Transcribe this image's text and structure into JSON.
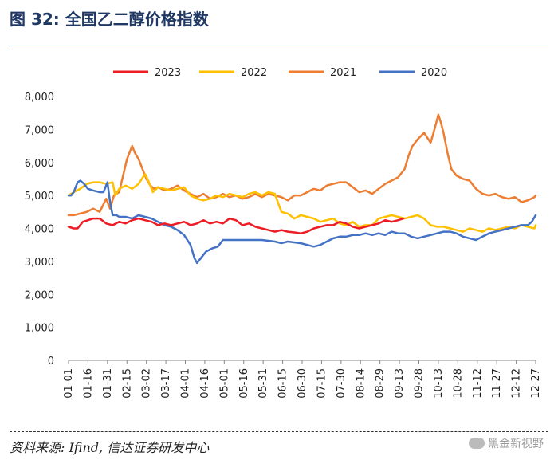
{
  "header": {
    "title": "图 32:  全国乙二醇价格指数"
  },
  "footer": {
    "source": "资料来源: Ifind, 信达证券研发中心",
    "watermark": "黑金新视野"
  },
  "colors": {
    "s2023": "#ee1c25",
    "s2022": "#ffc000",
    "s2021": "#ed7d31",
    "s2020": "#4472c4"
  },
  "chart_data": {
    "type": "line",
    "title": "全国乙二醇价格指数",
    "xlabel": "",
    "ylabel": "",
    "ylim": [
      0,
      8000
    ],
    "yticks": [
      0,
      1000,
      2000,
      3000,
      4000,
      5000,
      6000,
      7000,
      8000
    ],
    "ytick_labels": [
      "0",
      "1,000",
      "2,000",
      "3,000",
      "4,000",
      "5,000",
      "6,000",
      "7,000",
      "8,000"
    ],
    "xlim": [
      1,
      361
    ],
    "xticks": [
      1,
      16,
      31,
      46,
      61,
      76,
      91,
      106,
      121,
      136,
      151,
      166,
      181,
      196,
      211,
      226,
      241,
      256,
      271,
      286,
      301,
      316,
      331,
      346,
      361
    ],
    "xtick_labels": [
      "01-01",
      "01-16",
      "01-31",
      "02-15",
      "03-02",
      "03-17",
      "04-01",
      "04-16",
      "05-01",
      "05-16",
      "05-31",
      "06-15",
      "06-30",
      "07-15",
      "07-30",
      "08-14",
      "08-29",
      "09-13",
      "09-28",
      "10-13",
      "10-28",
      "11-12",
      "11-27",
      "12-12",
      "12-27"
    ],
    "legend": [
      "2023",
      "2022",
      "2021",
      "2020"
    ],
    "series": [
      {
        "name": "2023",
        "x": [
          1,
          5,
          8,
          12,
          16,
          20,
          25,
          30,
          35,
          40,
          45,
          50,
          55,
          60,
          65,
          70,
          75,
          80,
          85,
          90,
          95,
          100,
          105,
          110,
          115,
          120,
          125,
          130,
          135,
          140,
          145,
          150,
          155,
          160,
          165,
          170,
          175,
          180,
          185,
          190,
          195,
          200,
          205,
          210,
          215,
          220,
          225,
          230,
          235,
          240,
          245,
          250,
          255,
          259
        ],
        "values": [
          4050,
          4000,
          4000,
          4200,
          4250,
          4300,
          4300,
          4150,
          4100,
          4200,
          4150,
          4250,
          4300,
          4250,
          4200,
          4100,
          4150,
          4100,
          4150,
          4200,
          4100,
          4150,
          4250,
          4150,
          4200,
          4150,
          4300,
          4250,
          4100,
          4150,
          4050,
          4000,
          3950,
          3900,
          3950,
          3900,
          3880,
          3850,
          3900,
          4000,
          4050,
          4100,
          4100,
          4200,
          4150,
          4050,
          4000,
          4050,
          4100,
          4150,
          4250,
          4200,
          4250,
          4300
        ]
      },
      {
        "name": "2022",
        "x": [
          1,
          5,
          10,
          15,
          20,
          25,
          30,
          35,
          37,
          40,
          45,
          50,
          55,
          60,
          63,
          66,
          70,
          75,
          80,
          85,
          90,
          95,
          100,
          105,
          110,
          115,
          120,
          125,
          130,
          135,
          140,
          145,
          150,
          155,
          160,
          165,
          170,
          175,
          180,
          185,
          190,
          195,
          200,
          205,
          210,
          215,
          220,
          225,
          230,
          235,
          240,
          245,
          250,
          255,
          260,
          265,
          270,
          275,
          280,
          285,
          290,
          295,
          300,
          305,
          310,
          315,
          320,
          325,
          330,
          335,
          340,
          345,
          350,
          355,
          360,
          361
        ],
        "values": [
          5000,
          5100,
          5200,
          5350,
          5400,
          5400,
          5350,
          5400,
          5000,
          5200,
          5300,
          5200,
          5350,
          5650,
          5400,
          5100,
          5250,
          5200,
          5150,
          5200,
          5250,
          5000,
          4900,
          4850,
          4900,
          5000,
          4950,
          5050,
          5000,
          4950,
          5050,
          5100,
          5000,
          5100,
          5050,
          4500,
          4450,
          4300,
          4400,
          4350,
          4300,
          4200,
          4250,
          4300,
          4150,
          4100,
          4200,
          4050,
          4100,
          4100,
          4300,
          4350,
          4400,
          4350,
          4300,
          4350,
          4400,
          4300,
          4100,
          4050,
          4050,
          4000,
          3950,
          3900,
          4000,
          3950,
          3900,
          4000,
          3950,
          4000,
          4050,
          4000,
          4100,
          4050,
          4000,
          4100
        ]
      },
      {
        "name": "2021",
        "x": [
          1,
          5,
          10,
          15,
          20,
          25,
          30,
          33,
          36,
          40,
          43,
          46,
          50,
          52,
          55,
          58,
          61,
          64,
          67,
          70,
          75,
          80,
          85,
          90,
          95,
          100,
          105,
          110,
          115,
          120,
          125,
          130,
          135,
          140,
          145,
          150,
          155,
          160,
          165,
          170,
          175,
          180,
          185,
          190,
          195,
          200,
          205,
          210,
          215,
          220,
          225,
          230,
          235,
          240,
          245,
          250,
          255,
          260,
          263,
          266,
          270,
          275,
          280,
          283,
          286,
          288,
          290,
          293,
          296,
          300,
          305,
          310,
          315,
          320,
          325,
          330,
          335,
          340,
          345,
          350,
          355,
          360,
          361
        ],
        "values": [
          4400,
          4400,
          4450,
          4500,
          4600,
          4500,
          4900,
          4600,
          5000,
          5100,
          5600,
          6100,
          6500,
          6300,
          6100,
          5800,
          5500,
          5300,
          5200,
          5250,
          5150,
          5200,
          5300,
          5150,
          5050,
          4950,
          5050,
          4900,
          4950,
          5050,
          4950,
          5000,
          4900,
          4950,
          5050,
          4950,
          5050,
          5000,
          4950,
          4850,
          5000,
          5000,
          5100,
          5200,
          5150,
          5300,
          5350,
          5400,
          5400,
          5250,
          5100,
          5150,
          5050,
          5200,
          5350,
          5450,
          5550,
          5800,
          6200,
          6500,
          6700,
          6900,
          6600,
          7000,
          7450,
          7200,
          6900,
          6300,
          5800,
          5600,
          5500,
          5450,
          5200,
          5050,
          5000,
          5050,
          4950,
          4900,
          4950,
          4800,
          4850,
          4950,
          5000
        ]
      },
      {
        "name": "2020",
        "x": [
          1,
          3,
          5,
          8,
          10,
          13,
          16,
          20,
          25,
          28,
          31,
          33,
          35,
          38,
          40,
          45,
          50,
          55,
          60,
          65,
          70,
          75,
          80,
          85,
          90,
          95,
          98,
          100,
          103,
          107,
          112,
          116,
          120,
          125,
          130,
          140,
          150,
          160,
          165,
          170,
          180,
          185,
          190,
          195,
          200,
          205,
          210,
          215,
          220,
          225,
          230,
          235,
          240,
          245,
          250,
          255,
          260,
          265,
          270,
          275,
          280,
          285,
          290,
          295,
          300,
          305,
          310,
          315,
          320,
          325,
          330,
          335,
          340,
          345,
          350,
          355,
          358,
          361
        ],
        "values": [
          5000,
          5000,
          5100,
          5400,
          5450,
          5350,
          5200,
          5150,
          5100,
          5100,
          5400,
          4800,
          4400,
          4400,
          4350,
          4350,
          4300,
          4400,
          4350,
          4300,
          4200,
          4100,
          4050,
          3950,
          3800,
          3500,
          3100,
          2950,
          3100,
          3300,
          3400,
          3450,
          3650,
          3650,
          3650,
          3650,
          3650,
          3600,
          3550,
          3600,
          3550,
          3500,
          3450,
          3500,
          3600,
          3700,
          3750,
          3750,
          3800,
          3800,
          3850,
          3800,
          3850,
          3800,
          3900,
          3850,
          3850,
          3750,
          3700,
          3750,
          3800,
          3850,
          3900,
          3900,
          3850,
          3750,
          3700,
          3650,
          3750,
          3850,
          3900,
          3950,
          4000,
          4050,
          4100,
          4100,
          4200,
          4400
        ]
      }
    ]
  }
}
